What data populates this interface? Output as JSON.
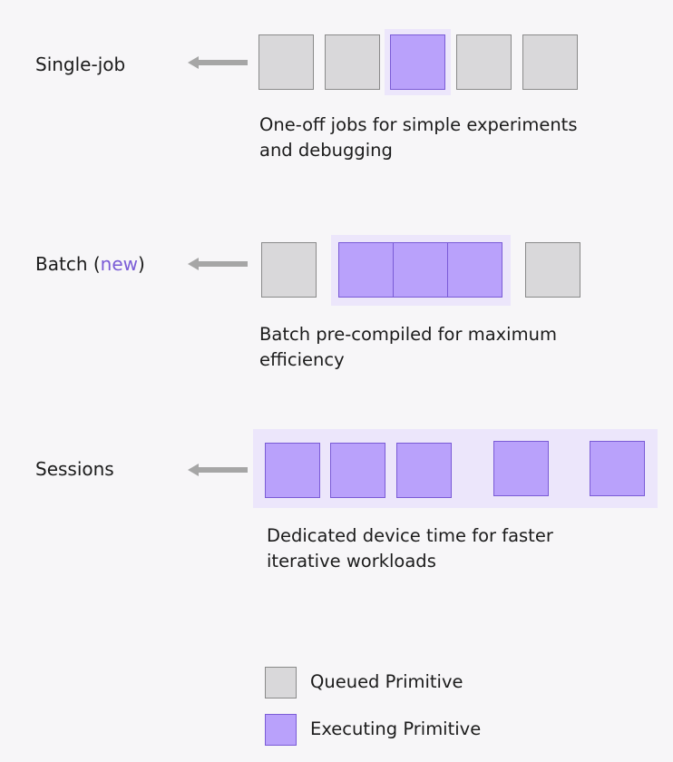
{
  "rows": [
    {
      "label": "Single-job",
      "description_line1": "One-off jobs for simple experiments",
      "description_line2": "and debugging"
    },
    {
      "label_prefix": "Batch (",
      "label_new": "new",
      "label_suffix": ")",
      "description_line1": "Batch pre-compiled for maximum",
      "description_line2": "efficiency"
    },
    {
      "label": "Sessions",
      "description_line1": "Dedicated device time for faster",
      "description_line2": "iterative workloads"
    }
  ],
  "legend": [
    {
      "label": "Queued Primitive",
      "color": "#d9d8da"
    },
    {
      "label": "Executing Primitive",
      "color": "#b9a1fb"
    }
  ],
  "colors": {
    "queued": "#d9d8da",
    "executing": "#b9a1fb",
    "accent": "#7a5bd6",
    "group_highlight": "#ece6fb",
    "arrow": "#a6a6a6"
  }
}
